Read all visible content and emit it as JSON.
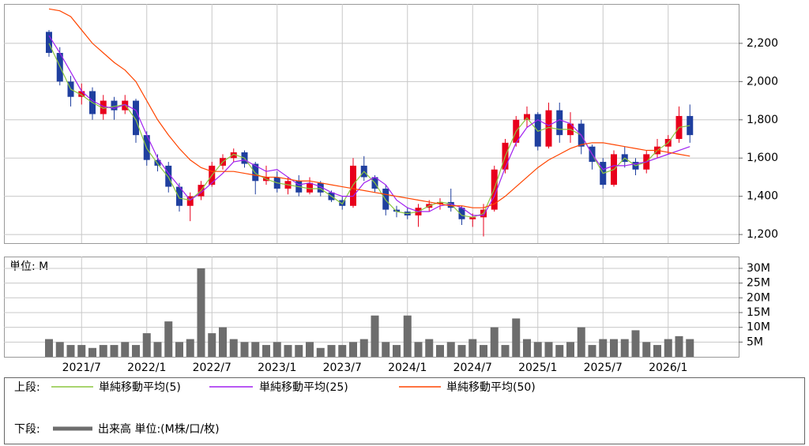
{
  "chart_data": [
    {
      "type": "candlestick",
      "legend_label": "上段:",
      "up_color": "#e8001c",
      "down_color": "#1f3f9f",
      "ylim": [
        1155,
        2406
      ],
      "yticks": [
        {
          "value": 1200,
          "label": "1,200"
        },
        {
          "value": 1400,
          "label": "1,400"
        },
        {
          "value": 1600,
          "label": "1,600"
        },
        {
          "value": 1800,
          "label": "1,800"
        },
        {
          "value": 2000,
          "label": "2,000"
        },
        {
          "value": 2200,
          "label": "2,200"
        }
      ],
      "grid": true,
      "open": [
        2260,
        2150,
        2000,
        1920,
        1950,
        1830,
        1900,
        1850,
        1900,
        1720,
        1590,
        1560,
        1450,
        1350,
        1400,
        1460,
        1560,
        1600,
        1630,
        1570,
        1480,
        1500,
        1440,
        1480,
        1420,
        1470,
        1420,
        1380,
        1350,
        1560,
        1500,
        1440,
        1330,
        1320,
        1300,
        1340,
        1360,
        1370,
        1340,
        1280,
        1290,
        1330,
        1540,
        1680,
        1800,
        1830,
        1660,
        1850,
        1720,
        1780,
        1660,
        1580,
        1460,
        1620,
        1580,
        1540,
        1620,
        1660,
        1700,
        1820
      ],
      "high": [
        2270,
        2180,
        2030,
        1990,
        1970,
        1930,
        1920,
        1930,
        1910,
        1740,
        1620,
        1580,
        1470,
        1420,
        1480,
        1580,
        1620,
        1650,
        1640,
        1580,
        1560,
        1530,
        1500,
        1510,
        1500,
        1480,
        1430,
        1400,
        1600,
        1610,
        1510,
        1460,
        1350,
        1340,
        1360,
        1380,
        1390,
        1440,
        1350,
        1310,
        1360,
        1560,
        1700,
        1820,
        1870,
        1840,
        1890,
        1890,
        1840,
        1800,
        1670,
        1600,
        1640,
        1660,
        1600,
        1640,
        1700,
        1720,
        1870,
        1880
      ],
      "low": [
        2130,
        1980,
        1870,
        1880,
        1800,
        1800,
        1800,
        1830,
        1680,
        1560,
        1530,
        1420,
        1320,
        1270,
        1380,
        1450,
        1540,
        1580,
        1550,
        1410,
        1460,
        1420,
        1410,
        1400,
        1410,
        1400,
        1370,
        1330,
        1340,
        1480,
        1420,
        1300,
        1290,
        1280,
        1240,
        1320,
        1330,
        1320,
        1250,
        1240,
        1190,
        1320,
        1520,
        1660,
        1760,
        1640,
        1650,
        1680,
        1680,
        1620,
        1540,
        1440,
        1450,
        1550,
        1510,
        1520,
        1600,
        1620,
        1680,
        1680
      ],
      "close": [
        2150,
        2000,
        1920,
        1950,
        1830,
        1900,
        1850,
        1900,
        1720,
        1590,
        1560,
        1450,
        1350,
        1400,
        1460,
        1560,
        1600,
        1630,
        1570,
        1480,
        1500,
        1440,
        1480,
        1420,
        1470,
        1420,
        1380,
        1350,
        1560,
        1500,
        1440,
        1330,
        1320,
        1300,
        1340,
        1360,
        1370,
        1340,
        1280,
        1290,
        1330,
        1540,
        1680,
        1800,
        1830,
        1660,
        1850,
        1720,
        1780,
        1660,
        1580,
        1460,
        1620,
        1580,
        1540,
        1620,
        1660,
        1700,
        1820,
        1720
      ],
      "series": [
        {
          "name": "単純移動平均(5)",
          "color": "#8cc63f",
          "values": [
            2200,
            2080,
            1960,
            1930,
            1890,
            1860,
            1870,
            1880,
            1800,
            1650,
            1570,
            1500,
            1390,
            1380,
            1430,
            1510,
            1580,
            1620,
            1600,
            1520,
            1490,
            1470,
            1460,
            1450,
            1440,
            1440,
            1400,
            1360,
            1460,
            1530,
            1470,
            1380,
            1320,
            1310,
            1320,
            1350,
            1370,
            1360,
            1300,
            1290,
            1310,
            1440,
            1610,
            1740,
            1810,
            1740,
            1760,
            1750,
            1750,
            1720,
            1620,
            1520,
            1540,
            1600,
            1560,
            1580,
            1640,
            1680,
            1760,
            1770
          ]
        },
        {
          "name": "単純移動平均(25)",
          "color": "#a020f0",
          "values": [
            2240,
            2150,
            2050,
            1950,
            1900,
            1870,
            1860,
            1880,
            1850,
            1720,
            1600,
            1520,
            1450,
            1380,
            1420,
            1470,
            1520,
            1580,
            1590,
            1560,
            1530,
            1540,
            1500,
            1460,
            1470,
            1450,
            1420,
            1400,
            1400,
            1470,
            1500,
            1460,
            1380,
            1340,
            1320,
            1320,
            1350,
            1360,
            1340,
            1300,
            1300,
            1400,
            1550,
            1680,
            1760,
            1800,
            1770,
            1800,
            1780,
            1720,
            1620,
            1540,
            1560,
            1560,
            1570,
            1580,
            1600,
            1620,
            1640,
            1660
          ]
        },
        {
          "name": "単純移動平均(50)",
          "color": "#ff4500",
          "values": [
            2380,
            2370,
            2340,
            2270,
            2200,
            2150,
            2100,
            2060,
            2000,
            1900,
            1800,
            1720,
            1650,
            1590,
            1550,
            1530,
            1530,
            1530,
            1520,
            1510,
            1500,
            1500,
            1490,
            1480,
            1480,
            1470,
            1460,
            1450,
            1440,
            1430,
            1420,
            1410,
            1400,
            1390,
            1380,
            1370,
            1360,
            1350,
            1350,
            1340,
            1340,
            1360,
            1400,
            1450,
            1500,
            1550,
            1590,
            1620,
            1650,
            1670,
            1680,
            1680,
            1670,
            1660,
            1650,
            1640,
            1640,
            1630,
            1620,
            1610
          ]
        }
      ]
    },
    {
      "type": "bar",
      "legend_label": "下段:",
      "unit_label": "単位: M",
      "categories": [
        null,
        null,
        null,
        "2021/7",
        null,
        null,
        null,
        null,
        null,
        "2022/1",
        null,
        null,
        null,
        null,
        null,
        "2022/7",
        null,
        null,
        null,
        null,
        null,
        "2023/1",
        null,
        null,
        null,
        null,
        null,
        "2023/7",
        null,
        null,
        null,
        null,
        null,
        "2024/1",
        null,
        null,
        null,
        null,
        null,
        "2024/7",
        null,
        null,
        null,
        null,
        null,
        "2025/1",
        null,
        null,
        null,
        null,
        null,
        "2025/7",
        null,
        null,
        null,
        null,
        null,
        "2026/1",
        null,
        null
      ],
      "series": [
        {
          "name": "出来高 単位:(M株/口/枚)",
          "color": "#6d6d6d",
          "values": [
            6,
            5,
            4,
            4,
            3,
            4,
            4,
            5,
            4,
            8,
            5,
            12,
            5,
            6,
            30,
            8,
            10,
            6,
            5,
            5,
            4,
            5,
            4,
            4,
            5,
            3,
            4,
            4,
            5,
            6,
            14,
            5,
            4,
            14,
            5,
            6,
            4,
            5,
            4,
            6,
            4,
            10,
            4,
            13,
            6,
            5,
            5,
            4,
            5,
            10,
            4,
            6,
            6,
            6,
            9,
            5,
            4,
            6,
            7,
            6
          ]
        }
      ],
      "ylim": [
        0,
        34
      ],
      "yticks": [
        {
          "value": 5,
          "label": "5M"
        },
        {
          "value": 10,
          "label": "10M"
        },
        {
          "value": 15,
          "label": "15M"
        },
        {
          "value": 20,
          "label": "20M"
        },
        {
          "value": 25,
          "label": "25M"
        },
        {
          "value": 30,
          "label": "30M"
        }
      ],
      "grid": true
    }
  ]
}
